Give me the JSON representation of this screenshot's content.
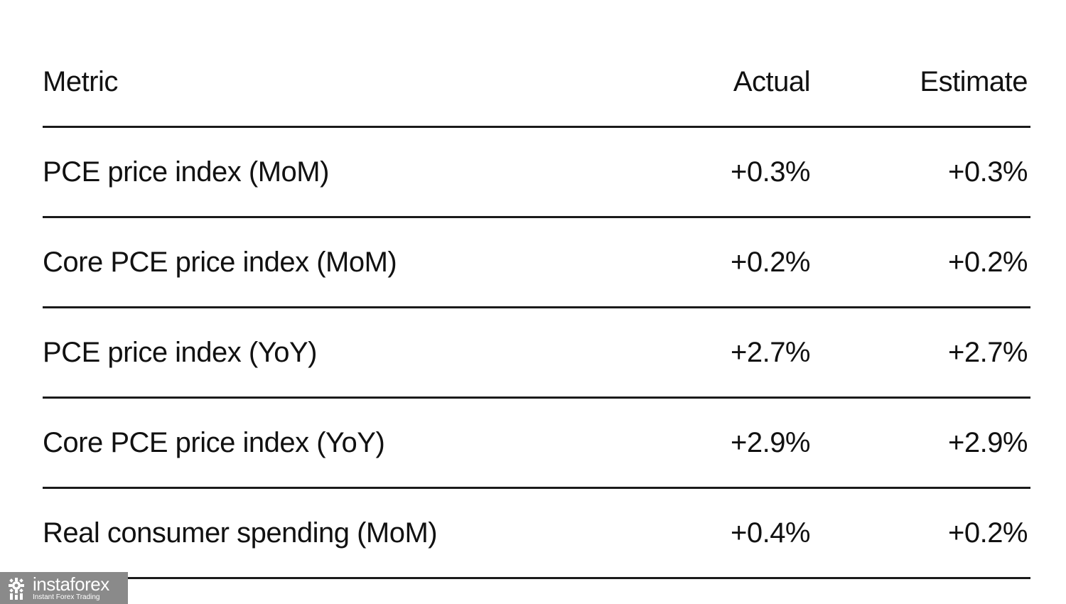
{
  "table": {
    "headers": {
      "metric": "Metric",
      "actual": "Actual",
      "estimate": "Estimate"
    },
    "rows": [
      {
        "metric": "PCE price index (MoM)",
        "actual": "+0.3%",
        "estimate": "+0.3%"
      },
      {
        "metric": "Core PCE price index (MoM)",
        "actual": "+0.2%",
        "estimate": "+0.2%"
      },
      {
        "metric": "PCE price index (YoY)",
        "actual": "+2.7%",
        "estimate": "+2.7%"
      },
      {
        "metric": "Core PCE price index (YoY)",
        "actual": "+2.9%",
        "estimate": "+2.9%"
      },
      {
        "metric": "Real consumer spending (MoM)",
        "actual": "+0.4%",
        "estimate": "+0.2%"
      }
    ]
  },
  "watermark": {
    "name": "instaforex",
    "tagline": "Instant Forex Trading",
    "logo_icon": "instaforex-logo-icon",
    "background": "#8a8a8a"
  }
}
